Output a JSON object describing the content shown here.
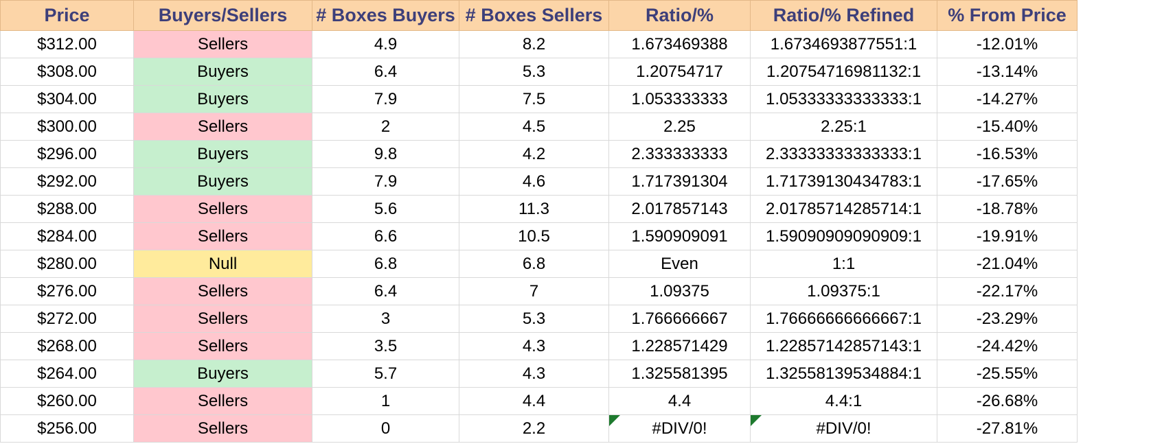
{
  "columns": [
    "Price",
    "Buyers/Sellers",
    "# Boxes Buyers",
    "# Boxes Sellers",
    "Ratio/%",
    "Ratio/% Refined",
    "% From Price"
  ],
  "rows": [
    {
      "price": "$312.00",
      "side": "Sellers",
      "buyers": "4.9",
      "sellers": "8.2",
      "ratio": "1.673469388",
      "refined": "1.6734693877551:1",
      "from_price": "-12.01%",
      "error": false
    },
    {
      "price": "$308.00",
      "side": "Buyers",
      "buyers": "6.4",
      "sellers": "5.3",
      "ratio": "1.20754717",
      "refined": "1.20754716981132:1",
      "from_price": "-13.14%",
      "error": false
    },
    {
      "price": "$304.00",
      "side": "Buyers",
      "buyers": "7.9",
      "sellers": "7.5",
      "ratio": "1.053333333",
      "refined": "1.05333333333333:1",
      "from_price": "-14.27%",
      "error": false
    },
    {
      "price": "$300.00",
      "side": "Sellers",
      "buyers": "2",
      "sellers": "4.5",
      "ratio": "2.25",
      "refined": "2.25:1",
      "from_price": "-15.40%",
      "error": false
    },
    {
      "price": "$296.00",
      "side": "Buyers",
      "buyers": "9.8",
      "sellers": "4.2",
      "ratio": "2.333333333",
      "refined": "2.33333333333333:1",
      "from_price": "-16.53%",
      "error": false
    },
    {
      "price": "$292.00",
      "side": "Buyers",
      "buyers": "7.9",
      "sellers": "4.6",
      "ratio": "1.717391304",
      "refined": "1.71739130434783:1",
      "from_price": "-17.65%",
      "error": false
    },
    {
      "price": "$288.00",
      "side": "Sellers",
      "buyers": "5.6",
      "sellers": "11.3",
      "ratio": "2.017857143",
      "refined": "2.01785714285714:1",
      "from_price": "-18.78%",
      "error": false
    },
    {
      "price": "$284.00",
      "side": "Sellers",
      "buyers": "6.6",
      "sellers": "10.5",
      "ratio": "1.590909091",
      "refined": "1.59090909090909:1",
      "from_price": "-19.91%",
      "error": false
    },
    {
      "price": "$280.00",
      "side": "Null",
      "buyers": "6.8",
      "sellers": "6.8",
      "ratio": "Even",
      "refined": "1:1",
      "from_price": "-21.04%",
      "error": false
    },
    {
      "price": "$276.00",
      "side": "Sellers",
      "buyers": "6.4",
      "sellers": "7",
      "ratio": "1.09375",
      "refined": "1.09375:1",
      "from_price": "-22.17%",
      "error": false
    },
    {
      "price": "$272.00",
      "side": "Sellers",
      "buyers": "3",
      "sellers": "5.3",
      "ratio": "1.766666667",
      "refined": "1.76666666666667:1",
      "from_price": "-23.29%",
      "error": false
    },
    {
      "price": "$268.00",
      "side": "Sellers",
      "buyers": "3.5",
      "sellers": "4.3",
      "ratio": "1.228571429",
      "refined": "1.22857142857143:1",
      "from_price": "-24.42%",
      "error": false
    },
    {
      "price": "$264.00",
      "side": "Buyers",
      "buyers": "5.7",
      "sellers": "4.3",
      "ratio": "1.325581395",
      "refined": "1.32558139534884:1",
      "from_price": "-25.55%",
      "error": false
    },
    {
      "price": "$260.00",
      "side": "Sellers",
      "buyers": "1",
      "sellers": "4.4",
      "ratio": "4.4",
      "refined": "4.4:1",
      "from_price": "-26.68%",
      "error": false
    },
    {
      "price": "$256.00",
      "side": "Sellers",
      "buyers": "0",
      "sellers": "2.2",
      "ratio": "#DIV/0!",
      "refined": "#DIV/0!",
      "from_price": "-27.81%",
      "error": true
    }
  ],
  "colors": {
    "header_bg": "#fcd5a8",
    "header_text": "#3d3f7a",
    "sellers_bg": "#ffc7ce",
    "sellers_text": "#9c0006",
    "buyers_bg": "#c6efce",
    "buyers_text": "#006100",
    "null_bg": "#ffeb9c",
    "null_text": "#9c5700",
    "error_marker": "#1e7a2e"
  }
}
